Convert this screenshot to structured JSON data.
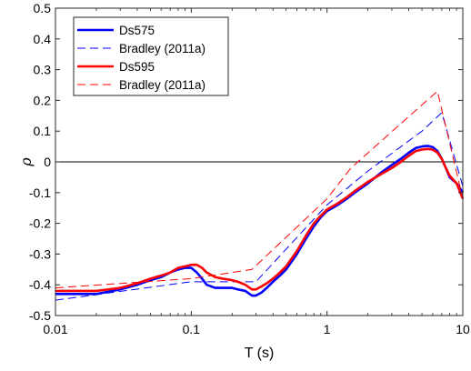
{
  "chart_data": {
    "type": "line",
    "xscale": "log",
    "xlabel": "T (s)",
    "ylabel": "ρ",
    "xlim": [
      0.01,
      10
    ],
    "ylim": [
      -0.5,
      0.5
    ],
    "xticks": [
      {
        "value": 0.01,
        "label": "0.01"
      },
      {
        "value": 0.1,
        "label": "0.1"
      },
      {
        "value": 1,
        "label": "1"
      },
      {
        "value": 10,
        "label": "10"
      }
    ],
    "yticks": [
      {
        "value": -0.5,
        "label": "-0.5"
      },
      {
        "value": -0.4,
        "label": "-0.4"
      },
      {
        "value": -0.3,
        "label": "-0.3"
      },
      {
        "value": -0.2,
        "label": "-0.2"
      },
      {
        "value": -0.1,
        "label": "-0.1"
      },
      {
        "value": 0,
        "label": "0"
      },
      {
        "value": 0.1,
        "label": "0.1"
      },
      {
        "value": 0.2,
        "label": "0.2"
      },
      {
        "value": 0.3,
        "label": "0.3"
      },
      {
        "value": 0.4,
        "label": "0.4"
      },
      {
        "value": 0.5,
        "label": "0.5"
      }
    ],
    "reference_line": {
      "y": 0,
      "color": "#000000"
    },
    "grid": false,
    "legend_position": "top-left",
    "series": [
      {
        "name": "Ds575",
        "color": "#0000ff",
        "style": "solid",
        "x": [
          0.01,
          0.015,
          0.02,
          0.03,
          0.04,
          0.05,
          0.06,
          0.07,
          0.08,
          0.09,
          0.1,
          0.11,
          0.12,
          0.13,
          0.15,
          0.17,
          0.2,
          0.22,
          0.25,
          0.28,
          0.3,
          0.33,
          0.36,
          0.4,
          0.45,
          0.5,
          0.6,
          0.7,
          0.8,
          0.9,
          1.0,
          1.2,
          1.4,
          1.6,
          2.0,
          2.5,
          3.0,
          3.5,
          4.0,
          4.5,
          5.0,
          5.5,
          6.0,
          6.5,
          7.0,
          7.5,
          8.0,
          9.0,
          10.0
        ],
        "y": [
          -0.43,
          -0.43,
          -0.43,
          -0.415,
          -0.4,
          -0.385,
          -0.375,
          -0.36,
          -0.35,
          -0.345,
          -0.345,
          -0.36,
          -0.38,
          -0.4,
          -0.41,
          -0.41,
          -0.41,
          -0.415,
          -0.42,
          -0.435,
          -0.435,
          -0.425,
          -0.41,
          -0.39,
          -0.37,
          -0.35,
          -0.3,
          -0.25,
          -0.21,
          -0.18,
          -0.16,
          -0.14,
          -0.12,
          -0.1,
          -0.07,
          -0.035,
          -0.01,
          0.01,
          0.03,
          0.045,
          0.05,
          0.052,
          0.048,
          0.035,
          0.01,
          -0.02,
          -0.05,
          -0.07,
          -0.1
        ]
      },
      {
        "name": "Bradley (2011a)",
        "color": "#0000ff",
        "style": "dashed",
        "x": [
          0.01,
          0.1,
          0.3,
          1.0,
          2.0,
          5.0,
          7.0,
          10.0
        ],
        "y": [
          -0.45,
          -0.39,
          -0.39,
          -0.14,
          -0.03,
          0.1,
          0.16,
          -0.08
        ]
      },
      {
        "name": "Ds595",
        "color": "#ff0000",
        "style": "solid",
        "x": [
          0.01,
          0.015,
          0.02,
          0.03,
          0.04,
          0.05,
          0.06,
          0.07,
          0.08,
          0.09,
          0.1,
          0.11,
          0.12,
          0.13,
          0.15,
          0.17,
          0.2,
          0.22,
          0.25,
          0.28,
          0.3,
          0.33,
          0.36,
          0.4,
          0.45,
          0.5,
          0.6,
          0.7,
          0.8,
          0.9,
          1.0,
          1.2,
          1.4,
          1.6,
          2.0,
          2.5,
          3.0,
          3.5,
          4.0,
          4.5,
          5.0,
          5.5,
          6.0,
          6.5,
          7.0,
          7.5,
          8.0,
          9.0,
          10.0
        ],
        "y": [
          -0.42,
          -0.42,
          -0.42,
          -0.41,
          -0.395,
          -0.38,
          -0.37,
          -0.36,
          -0.345,
          -0.34,
          -0.335,
          -0.335,
          -0.345,
          -0.36,
          -0.375,
          -0.38,
          -0.385,
          -0.39,
          -0.4,
          -0.415,
          -0.415,
          -0.405,
          -0.395,
          -0.38,
          -0.36,
          -0.34,
          -0.29,
          -0.24,
          -0.2,
          -0.175,
          -0.155,
          -0.135,
          -0.115,
          -0.095,
          -0.065,
          -0.04,
          -0.02,
          0.0,
          0.02,
          0.035,
          0.04,
          0.042,
          0.04,
          0.03,
          0.01,
          -0.02,
          -0.045,
          -0.07,
          -0.12
        ]
      },
      {
        "name": "Bradley (2011a)",
        "color": "#ff0000",
        "style": "dashed",
        "x": [
          0.01,
          0.1,
          0.28,
          1.0,
          1.5,
          6.5,
          10.0
        ],
        "y": [
          -0.41,
          -0.38,
          -0.35,
          -0.12,
          -0.02,
          0.23,
          -0.12
        ]
      }
    ]
  }
}
